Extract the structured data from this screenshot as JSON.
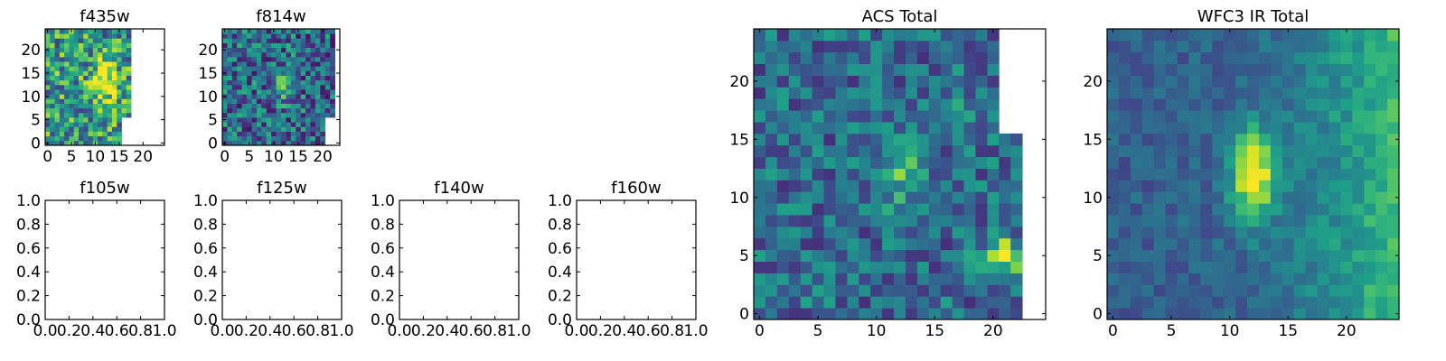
{
  "chart_data": [
    {
      "type": "heatmap",
      "id": "f435w",
      "title": "f435w",
      "xlim": [
        -0.5,
        24.5
      ],
      "ylim": [
        -0.5,
        24.5
      ],
      "xticks": [
        0,
        5,
        10,
        15,
        20
      ],
      "yticks": [
        0,
        5,
        10,
        15,
        20
      ],
      "colormap": "viridis",
      "data_cols": 18,
      "data_rows": 25,
      "notch": {
        "below_row": 6,
        "cols": 16
      },
      "blobs": [
        {
          "x": 12,
          "y": 13,
          "sx": 1.6,
          "sy": 3.0,
          "amp": 0.55
        }
      ],
      "base": 0.55,
      "noise": 0.35,
      "seed": 11
    },
    {
      "type": "heatmap",
      "id": "f814w",
      "title": "f814w",
      "xlim": [
        -0.5,
        23.5
      ],
      "ylim": [
        -0.5,
        24.5
      ],
      "xticks": [
        0,
        5,
        10,
        15,
        20
      ],
      "yticks": [
        0,
        5,
        10,
        15,
        20
      ],
      "colormap": "viridis",
      "data_cols": 23,
      "data_rows": 25,
      "notch": {
        "below_row": 6,
        "cols": 21
      },
      "blobs": [
        {
          "x": 12,
          "y": 12,
          "sx": 1.5,
          "sy": 2.0,
          "amp": 0.35
        },
        {
          "x": 21.5,
          "y": 5,
          "sx": 0.7,
          "sy": 0.6,
          "amp": 0.75
        }
      ],
      "base": 0.35,
      "noise": 0.3,
      "seed": 23
    },
    {
      "type": "empty",
      "id": "f105w",
      "title": "f105w",
      "xlim": [
        0,
        1
      ],
      "ylim": [
        0,
        1
      ],
      "xticks": [
        "0.0",
        "0.2",
        "0.4",
        "0.6",
        "0.8",
        "1.0"
      ],
      "yticks": [
        "0.0",
        "0.2",
        "0.4",
        "0.6",
        "0.8",
        "1.0"
      ]
    },
    {
      "type": "empty",
      "id": "f125w",
      "title": "f125w",
      "xlim": [
        0,
        1
      ],
      "ylim": [
        0,
        1
      ],
      "xticks": [
        "0.0",
        "0.2",
        "0.4",
        "0.6",
        "0.8",
        "1.0"
      ],
      "yticks": [
        "0.0",
        "0.2",
        "0.4",
        "0.6",
        "0.8",
        "1.0"
      ]
    },
    {
      "type": "empty",
      "id": "f140w",
      "title": "f140w",
      "xlim": [
        0,
        1
      ],
      "ylim": [
        0,
        1
      ],
      "xticks": [
        "0.0",
        "0.2",
        "0.4",
        "0.6",
        "0.8",
        "1.0"
      ],
      "yticks": [
        "0.0",
        "0.2",
        "0.4",
        "0.6",
        "0.8",
        "1.0"
      ]
    },
    {
      "type": "empty",
      "id": "f160w",
      "title": "f160w",
      "xlim": [
        0,
        1
      ],
      "ylim": [
        0,
        1
      ],
      "xticks": [
        "0.0",
        "0.2",
        "0.4",
        "0.6",
        "0.8",
        "1.0"
      ],
      "yticks": [
        "0.0",
        "0.2",
        "0.4",
        "0.6",
        "0.8",
        "1.0"
      ]
    },
    {
      "type": "heatmap",
      "id": "acs",
      "title": "ACS Total",
      "xlim": [
        -0.5,
        24.5
      ],
      "ylim": [
        -0.5,
        24.5
      ],
      "xticks": [
        0,
        5,
        10,
        15,
        20
      ],
      "yticks": [
        0,
        5,
        10,
        15,
        20
      ],
      "colormap": "viridis",
      "data_cols": 21,
      "data_rows": 25,
      "notch": {
        "below_row": 16,
        "cols": 23
      },
      "blobs": [
        {
          "x": 12,
          "y": 12,
          "sx": 1.4,
          "sy": 2.0,
          "amp": 0.3
        },
        {
          "x": 21,
          "y": 5,
          "sx": 1.3,
          "sy": 0.8,
          "amp": 0.75
        },
        {
          "x": 17,
          "y": 20,
          "sx": 0.8,
          "sy": 2.5,
          "amp": 0.15
        }
      ],
      "base": 0.35,
      "noise": 0.22,
      "seed": 37
    },
    {
      "type": "heatmap",
      "id": "wfc3",
      "title": "WFC3 IR Total",
      "xlim": [
        -0.5,
        24.5
      ],
      "ylim": [
        -0.5,
        24.5
      ],
      "xticks": [
        0,
        5,
        10,
        15,
        20
      ],
      "yticks": [
        0,
        5,
        10,
        15,
        20
      ],
      "colormap": "viridis",
      "data_cols": 25,
      "data_rows": 25,
      "blobs": [
        {
          "x": 12,
          "y": 12,
          "sx": 1.3,
          "sy": 2.6,
          "amp": 0.7
        }
      ],
      "gradient": {
        "direction": "right",
        "amp": 0.4
      },
      "base": 0.3,
      "noise": 0.1,
      "seed": 53
    }
  ]
}
